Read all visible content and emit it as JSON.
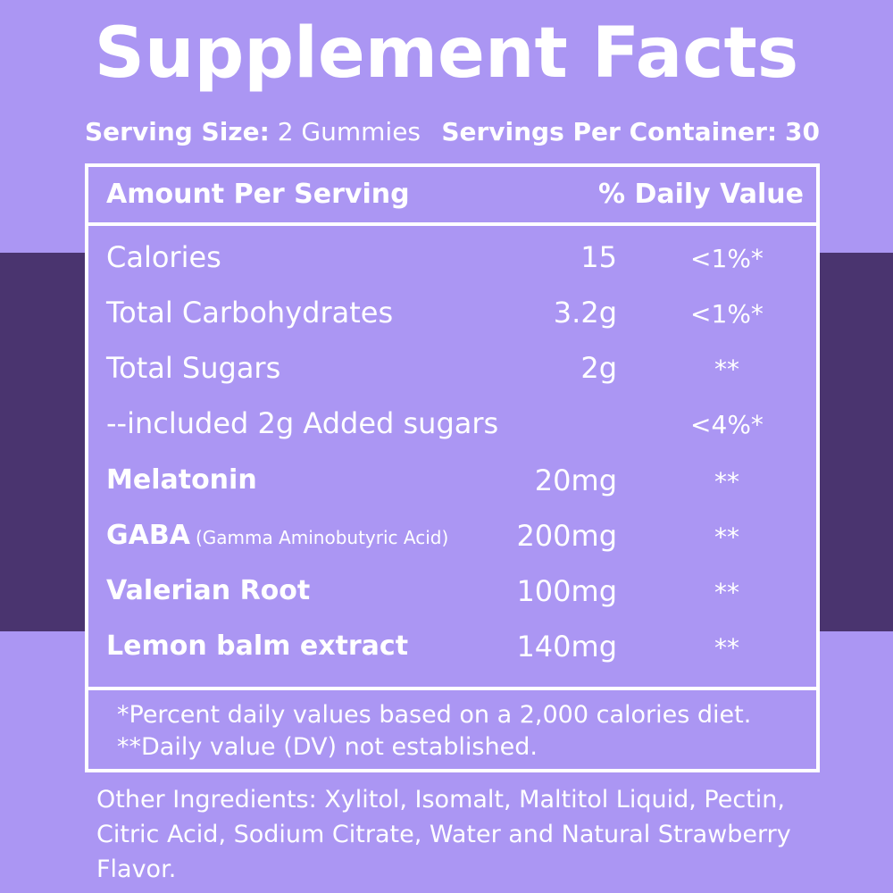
{
  "title": "Supplement Facts",
  "serving": {
    "size_label": "Serving Size:",
    "size_value": "2 Gummies",
    "per_container_label": "Servings Per Container:",
    "per_container_value": "30"
  },
  "table": {
    "header_left": "Amount Per Serving",
    "header_right": "% Daily Value",
    "rows": [
      {
        "name": "Calories",
        "sub": "",
        "amount": "15",
        "dv": "<1%*"
      },
      {
        "name": "Total Carbohydrates",
        "sub": "",
        "amount": "3.2g",
        "dv": "<1%*"
      },
      {
        "name": "Total Sugars",
        "sub": "",
        "amount": "2g",
        "dv": "**"
      },
      {
        "name": "--included 2g Added sugars",
        "sub": "",
        "amount": "",
        "dv": "<4%*"
      },
      {
        "name": "Melatonin",
        "sub": "",
        "amount": "20mg",
        "dv": "**"
      },
      {
        "name": "GABA",
        "sub": "(Gamma Aminobutyric Acid)",
        "amount": "200mg",
        "dv": "**"
      },
      {
        "name": "Valerian Root",
        "sub": "",
        "amount": "100mg",
        "dv": "**"
      },
      {
        "name": "Lemon balm extract",
        "sub": "",
        "amount": "140mg",
        "dv": "**"
      }
    ],
    "footnote_1": "*Percent daily values based on a 2,000 calories diet.",
    "footnote_2": "**Daily value (DV) not established."
  },
  "other_ingredients": "Other Ingredients: Xylitol, Isomalt, Maltitol Liquid, Pectin, Citric Acid, Sodium Citrate, Water and Natural Strawberry Flavor.",
  "colors": {
    "background": "#ab96f3",
    "band": "#4a346f",
    "text": "#ffffff"
  }
}
